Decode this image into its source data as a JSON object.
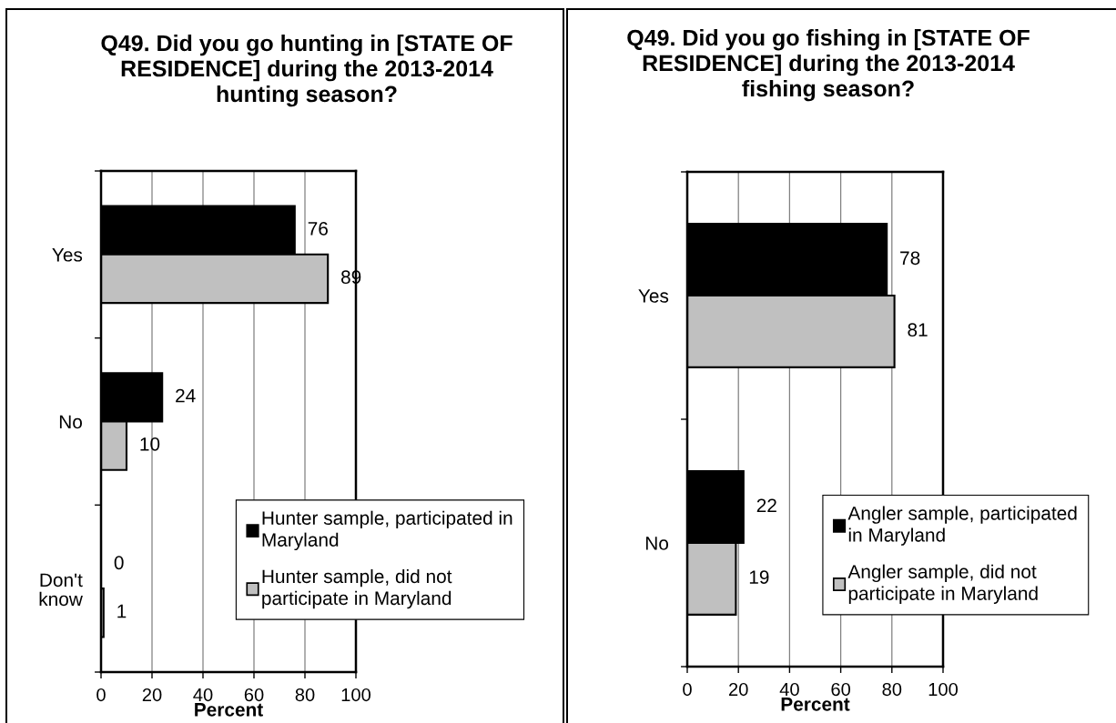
{
  "chart_data": [
    {
      "type": "bar",
      "orientation": "horizontal",
      "title": "Q49. Did you go hunting in [STATE OF\nRESIDENCE] during the 2013-2014\nhunting season?",
      "xlabel": "Percent",
      "categories": [
        "Yes",
        "No",
        "Don't\nknow"
      ],
      "series": [
        {
          "name": "Hunter sample, participated in\nMaryland",
          "color": "#000000",
          "values": [
            76,
            24,
            0
          ]
        },
        {
          "name": "Hunter sample, did not\nparticipate in Maryland",
          "color": "#c0c0c0",
          "values": [
            89,
            10,
            1
          ]
        }
      ],
      "xlim": [
        0,
        100
      ],
      "xticks": [
        0,
        20,
        40,
        60,
        80,
        100
      ],
      "grid": "x",
      "legend": "bottom right",
      "data_labels": true
    },
    {
      "type": "bar",
      "orientation": "horizontal",
      "title": "Q49. Did you go fishing in [STATE OF\nRESIDENCE] during the 2013-2014\nfishing season?",
      "xlabel": "Percent",
      "categories": [
        "Yes",
        "No"
      ],
      "series": [
        {
          "name": "Angler sample, participated\nin Maryland",
          "color": "#000000",
          "values": [
            78,
            22
          ]
        },
        {
          "name": "Angler sample, did not\nparticipate in Maryland",
          "color": "#c0c0c0",
          "values": [
            81,
            19
          ]
        }
      ],
      "xlim": [
        0,
        100
      ],
      "xticks": [
        0,
        20,
        40,
        60,
        80,
        100
      ],
      "grid": "x",
      "legend": "bottom right",
      "data_labels": true
    }
  ]
}
